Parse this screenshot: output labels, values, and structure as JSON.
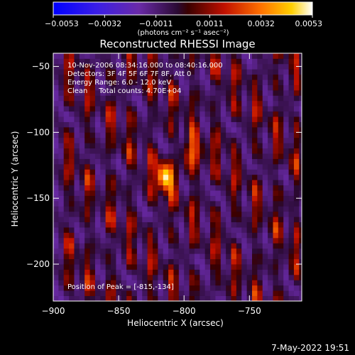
{
  "chart_data": {
    "type": "heatmap",
    "title": "Reconstructed RHESSI Image",
    "xlabel": "Heliocentric X (arcsec)",
    "ylabel": "Heliocentric Y (arcsec)",
    "xlim": [
      -900,
      -710
    ],
    "ylim": [
      -228,
      -40
    ],
    "x_ticks": [
      -900,
      -850,
      -800,
      -750
    ],
    "x_tick_labels": [
      "−900",
      "−850",
      "−800",
      "−750"
    ],
    "y_ticks": [
      -50,
      -100,
      -150,
      -200
    ],
    "y_tick_labels": [
      "−50",
      "−100",
      "−150",
      "−200"
    ],
    "colorbar": {
      "min": -0.0053,
      "max": 0.0053,
      "ticks": [
        -0.0053,
        -0.0032,
        -0.0011,
        0.0011,
        0.0032,
        0.0053
      ],
      "tick_labels": [
        "−0.0053",
        "−0.0032",
        "−0.0011",
        "0.0011",
        "0.0032",
        "0.0053"
      ],
      "unit_label": "(photons cm⁻² s⁻¹ asec⁻²)"
    },
    "annotations": {
      "time_range": "10-Nov-2006 08:34:16.000 to 08:40:16.000",
      "detectors": "Detectors: 3F 4F 5F 6F 7F 8F, Att 0",
      "energy_range": "Energy Range: 6.0 - 12.0 keV",
      "method_counts": "Clean     Total counts: 4.70E+04",
      "peak_position": "Position of Peak = [-815,-134]"
    },
    "peak": {
      "x": -815,
      "y": -134
    },
    "secondary_peak": {
      "x": -793,
      "y": -117
    },
    "stripe_columns_x": [
      -888,
      -873,
      -856,
      -841,
      -825,
      -809,
      -793,
      -776,
      -761,
      -745,
      -729,
      -714
    ],
    "grid": false,
    "colormap": "rhessi-blue-purple-red-yellow-white"
  },
  "footer": {
    "timestamp": "7-May-2022 19:51"
  }
}
